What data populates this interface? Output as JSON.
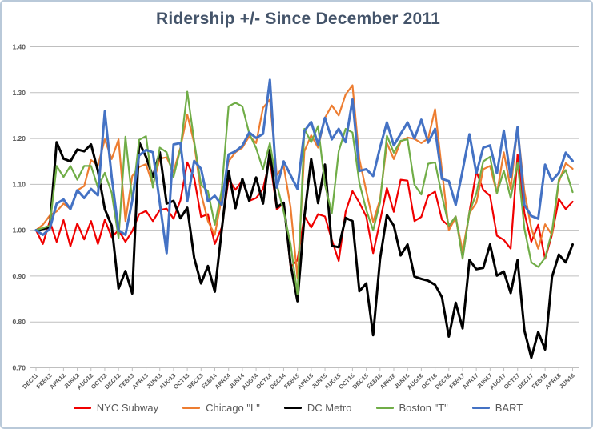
{
  "title": "Ridership +/- Since December 2011",
  "colors": {
    "title": "#44546a",
    "axis_labels": "#595959",
    "legend_text": "#595959",
    "gridline": "#bfbfbf",
    "frame_border": "#b9c9d9",
    "background": "#ffffff"
  },
  "chart_data": {
    "type": "line",
    "title": "Ridership +/- Since December 2011",
    "xlabel": "",
    "ylabel": "",
    "ylim": [
      0.7,
      1.4
    ],
    "y_ticks": [
      0.7,
      0.8,
      0.9,
      1.0,
      1.1,
      1.2,
      1.3,
      1.4
    ],
    "y_tick_format": "0.00",
    "grid": "horizontal",
    "legend_position": "bottom",
    "baseline_value": 1.0,
    "x_tick_every": 2,
    "x_axis_labels_shown": [
      "DEC11",
      "FEB12",
      "APR12",
      "JUN12",
      "AUG12",
      "OCT12",
      "DEC12",
      "FEB13",
      "APR13",
      "JUN13",
      "AUG13",
      "OCT13",
      "DEC13",
      "FEB14",
      "APR14",
      "JUN14",
      "AUG14",
      "OCT14",
      "DEC14",
      "FEB15",
      "APR15",
      "JUN15",
      "AUG15",
      "OCT15",
      "DEC15",
      "FEB16",
      "APR16",
      "JUN16",
      "AUG16",
      "OCT16",
      "DEC16",
      "FEB17",
      "APR17",
      "JUN17",
      "AUG17",
      "OCT17",
      "DEC17",
      "FEB18",
      "APR18",
      "JUN18"
    ],
    "categories": [
      "DEC11",
      "JAN12",
      "FEB12",
      "MAR12",
      "APR12",
      "MAY12",
      "JUN12",
      "JUL12",
      "AUG12",
      "SEP12",
      "OCT12",
      "NOV12",
      "DEC12",
      "JAN13",
      "FEB13",
      "MAR13",
      "APR13",
      "MAY13",
      "JUN13",
      "JUL13",
      "AUG13",
      "SEP13",
      "OCT13",
      "NOV13",
      "DEC13",
      "JAN14",
      "FEB14",
      "MAR14",
      "APR14",
      "MAY14",
      "JUN14",
      "JUL14",
      "AUG14",
      "SEP14",
      "OCT14",
      "NOV14",
      "DEC14",
      "JAN15",
      "FEB15",
      "MAR15",
      "APR15",
      "MAY15",
      "JUN15",
      "JUL15",
      "AUG15",
      "SEP15",
      "OCT15",
      "NOV15",
      "DEC15",
      "JAN16",
      "FEB16",
      "MAR16",
      "APR16",
      "MAY16",
      "JUN16",
      "JUL16",
      "AUG16",
      "SEP16",
      "OCT16",
      "NOV16",
      "DEC16",
      "JAN17",
      "FEB17",
      "MAR17",
      "APR17",
      "MAY17",
      "JUN17",
      "JUL17",
      "AUG17",
      "SEP17",
      "OCT17",
      "NOV17",
      "DEC17",
      "JAN18",
      "FEB18",
      "MAR18",
      "APR18",
      "MAY18",
      "JUN18"
    ],
    "series": [
      {
        "name": "NYC Subway",
        "color": "#f00000",
        "values": [
          1.0,
          0.97,
          1.02,
          0.975,
          1.022,
          0.965,
          1.015,
          0.98,
          1.02,
          0.97,
          1.023,
          0.985,
          1.0,
          0.975,
          0.998,
          1.035,
          1.042,
          1.02,
          1.044,
          1.047,
          1.025,
          1.065,
          1.148,
          1.114,
          1.029,
          1.035,
          0.97,
          1.006,
          1.111,
          1.088,
          1.108,
          1.064,
          1.07,
          1.09,
          1.155,
          1.045,
          1.06,
          0.92,
          0.935,
          1.031,
          1.006,
          1.035,
          1.03,
          0.979,
          0.933,
          1.04,
          1.085,
          1.06,
          1.03,
          0.95,
          1.02,
          1.092,
          1.04,
          1.11,
          1.108,
          1.02,
          1.029,
          1.075,
          1.084,
          1.023,
          1.009,
          1.03,
          0.94,
          1.04,
          1.128,
          1.088,
          1.075,
          0.988,
          0.979,
          0.96,
          1.165,
          1.037,
          0.975,
          1.012,
          0.938,
          0.99,
          1.068,
          1.046,
          1.062
        ]
      },
      {
        "name": "Chicago \"L\"",
        "color": "#ed7d31",
        "values": [
          1.0,
          1.012,
          1.032,
          1.041,
          1.058,
          1.046,
          1.087,
          1.096,
          1.153,
          1.141,
          1.198,
          1.155,
          1.198,
          1.02,
          1.118,
          1.138,
          1.144,
          1.098,
          1.156,
          1.159,
          1.127,
          1.18,
          1.252,
          1.19,
          1.08,
          1.02,
          0.99,
          1.07,
          1.15,
          1.17,
          1.18,
          1.205,
          1.19,
          1.267,
          1.285,
          1.12,
          1.14,
          1.05,
          0.896,
          1.172,
          1.207,
          1.18,
          1.245,
          1.272,
          1.25,
          1.296,
          1.316,
          1.155,
          1.085,
          1.018,
          1.067,
          1.19,
          1.155,
          1.193,
          1.202,
          1.199,
          1.19,
          1.2,
          1.264,
          1.13,
          1.0,
          1.028,
          0.955,
          1.037,
          1.06,
          1.133,
          1.14,
          1.08,
          1.17,
          1.09,
          1.225,
          1.084,
          1.004,
          0.96,
          1.013,
          0.99,
          1.105,
          1.146,
          1.134
        ]
      },
      {
        "name": "DC Metro",
        "color": "#000000",
        "values": [
          1.0,
          1.003,
          1.006,
          1.192,
          1.156,
          1.15,
          1.176,
          1.172,
          1.187,
          1.129,
          1.046,
          1.01,
          0.873,
          0.911,
          0.862,
          1.192,
          1.16,
          1.116,
          1.17,
          1.058,
          1.064,
          1.026,
          1.049,
          0.94,
          0.884,
          0.922,
          0.866,
          1.0,
          1.129,
          1.048,
          1.112,
          1.064,
          1.115,
          1.058,
          1.175,
          1.05,
          1.06,
          0.926,
          0.845,
          1.03,
          1.155,
          1.059,
          1.143,
          0.966,
          0.963,
          1.027,
          1.02,
          0.867,
          0.884,
          0.771,
          0.937,
          1.033,
          1.01,
          0.945,
          0.969,
          0.899,
          0.894,
          0.89,
          0.881,
          0.854,
          0.768,
          0.842,
          0.786,
          0.935,
          0.915,
          0.918,
          0.969,
          0.901,
          0.91,
          0.863,
          0.935,
          0.781,
          0.722,
          0.778,
          0.74,
          0.898,
          0.947,
          0.93,
          0.969
        ]
      },
      {
        "name": "Boston \"T\"",
        "color": "#70ad47",
        "values": [
          1.0,
          1.005,
          1.01,
          1.14,
          1.116,
          1.14,
          1.11,
          1.14,
          1.14,
          1.093,
          1.125,
          1.081,
          0.983,
          1.204,
          1.064,
          1.197,
          1.205,
          1.093,
          1.18,
          1.17,
          1.116,
          1.177,
          1.302,
          1.194,
          1.099,
          1.085,
          1.012,
          1.087,
          1.27,
          1.278,
          1.27,
          1.211,
          1.179,
          1.133,
          1.19,
          1.1,
          1.04,
          0.97,
          0.86,
          1.221,
          1.192,
          1.227,
          1.099,
          1.037,
          1.172,
          1.221,
          1.213,
          1.103,
          1.044,
          1.0,
          1.06,
          1.206,
          1.169,
          1.195,
          1.198,
          1.099,
          1.078,
          1.145,
          1.148,
          1.075,
          1.01,
          1.03,
          0.938,
          1.04,
          1.08,
          1.15,
          1.16,
          1.08,
          1.13,
          1.07,
          1.147,
          1.003,
          0.93,
          0.92,
          0.94,
          0.997,
          1.111,
          1.131,
          1.083
        ]
      },
      {
        "name": "BART",
        "color": "#4472c4",
        "values": [
          1.0,
          0.99,
          1.003,
          1.058,
          1.067,
          1.046,
          1.087,
          1.07,
          1.09,
          1.076,
          1.259,
          1.116,
          1.0,
          0.99,
          1.064,
          1.163,
          1.175,
          1.17,
          1.06,
          0.95,
          1.187,
          1.19,
          1.063,
          1.151,
          1.134,
          1.063,
          1.075,
          1.055,
          1.165,
          1.172,
          1.184,
          1.213,
          1.201,
          1.21,
          1.328,
          1.093,
          1.15,
          1.12,
          1.09,
          1.216,
          1.236,
          1.187,
          1.245,
          1.198,
          1.221,
          1.192,
          1.285,
          1.129,
          1.133,
          1.118,
          1.18,
          1.235,
          1.185,
          1.21,
          1.235,
          1.2,
          1.241,
          1.191,
          1.221,
          1.112,
          1.107,
          1.055,
          1.13,
          1.209,
          1.124,
          1.18,
          1.185,
          1.124,
          1.217,
          1.115,
          1.225,
          1.055,
          1.031,
          1.025,
          1.143,
          1.108,
          1.125,
          1.169,
          1.151
        ]
      }
    ]
  }
}
